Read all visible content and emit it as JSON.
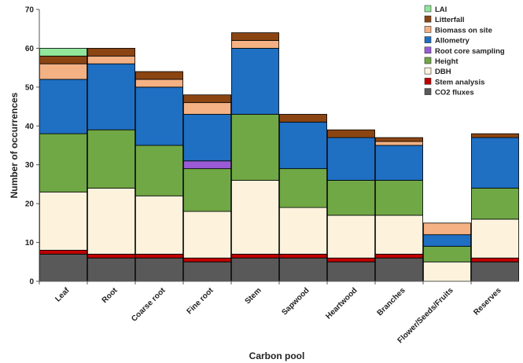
{
  "chart_data": {
    "type": "bar",
    "stacked": true,
    "xlabel": "Carbon pool",
    "ylabel": "Number of occurrences",
    "ylim": [
      0,
      70
    ],
    "yticks": [
      0,
      10,
      20,
      30,
      40,
      50,
      60,
      70
    ],
    "grid": false,
    "legend_position": "top-right",
    "categories": [
      "Leaf",
      "Root",
      "Coarse root",
      "Fine root",
      "Stem",
      "Sapwood",
      "Heartwood",
      "Branches",
      "Flower/Seeds/Fruits",
      "Reserves"
    ],
    "series": [
      {
        "name": "CO2 fluxes",
        "color": "#595959",
        "values": [
          7,
          6,
          6,
          5,
          6,
          6,
          5,
          6,
          0,
          5
        ]
      },
      {
        "name": "Stem analysis",
        "color": "#c00000",
        "values": [
          1,
          1,
          1,
          1,
          1,
          1,
          1,
          1,
          0,
          1
        ]
      },
      {
        "name": "DBH",
        "color": "#fdf3dd",
        "values": [
          15,
          17,
          15,
          12,
          19,
          12,
          11,
          10,
          5,
          10
        ]
      },
      {
        "name": "Height",
        "color": "#70a845",
        "values": [
          15,
          15,
          13,
          11,
          17,
          10,
          9,
          9,
          4,
          8
        ]
      },
      {
        "name": "Root core sampling",
        "color": "#9b5bd6",
        "values": [
          0,
          0,
          0,
          2,
          0,
          0,
          0,
          0,
          0,
          0
        ]
      },
      {
        "name": "Allometry",
        "color": "#1f6fc2",
        "values": [
          14,
          17,
          15,
          12,
          17,
          12,
          11,
          9,
          3,
          13
        ]
      },
      {
        "name": "Biomass on site",
        "color": "#f4b184",
        "values": [
          4,
          2,
          2,
          3,
          2,
          0,
          0,
          1,
          3,
          0
        ]
      },
      {
        "name": "Litterfall",
        "color": "#8b4513",
        "values": [
          2,
          2,
          2,
          2,
          2,
          2,
          2,
          1,
          0,
          1
        ]
      },
      {
        "name": "LAI",
        "color": "#92e69b",
        "values": [
          2,
          0,
          0,
          0,
          0,
          0,
          0,
          0,
          0,
          0
        ]
      }
    ]
  }
}
